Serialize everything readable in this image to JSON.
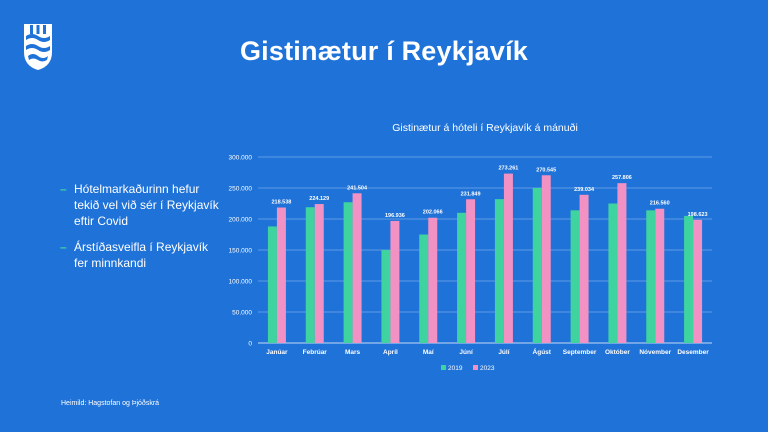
{
  "slide": {
    "title": "Gistinætur í Reykjavík",
    "bullets": [
      "Hótelmarkaðurinn hefur tekið vel við sér í Reykjavík eftir Covid",
      "Árstíðasveifla í Reykjavík fer minnkandi"
    ],
    "source": "Heimild: Hagstofan og Þjóðskrá",
    "logo_icon": "reykjavik-coat-of-arms-icon"
  },
  "colors": {
    "background": "#1f72d8",
    "series_2019": "#3fd3a0",
    "series_2023": "#f291c3",
    "grid": "#9dc0ee"
  },
  "chart_data": {
    "type": "bar",
    "title": "Gistinætur á hóteli í Reykjavík á mánuði",
    "categories": [
      "Janúar",
      "Febrúar",
      "Mars",
      "Apríl",
      "Maí",
      "Júní",
      "Júlí",
      "Ágúst",
      "September",
      "Október",
      "Nóvember",
      "Desember"
    ],
    "series": [
      {
        "name": "2019",
        "values": [
          188000,
          219000,
          227000,
          150000,
          175000,
          210000,
          232000,
          250000,
          214000,
          225000,
          214000,
          205000
        ]
      },
      {
        "name": "2023",
        "values": [
          218538,
          224129,
          241504,
          196936,
          202066,
          231849,
          273261,
          270545,
          239034,
          257806,
          216560,
          198623
        ]
      }
    ],
    "data_labels": [
      "218.538",
      "224.129",
      "241.504",
      "196.936",
      "202.066",
      "231.849",
      "273.261",
      "270.545",
      "239.034",
      "257.806",
      "216.560",
      "198.623"
    ],
    "y_ticks": [
      0,
      50000,
      100000,
      150000,
      200000,
      250000,
      300000
    ],
    "y_tick_labels": [
      "0",
      "50.000",
      "100.000",
      "150.000",
      "200.000",
      "250.000",
      "300.000"
    ],
    "ylim": [
      0,
      300000
    ],
    "grid": true,
    "legend_position": "bottom"
  }
}
